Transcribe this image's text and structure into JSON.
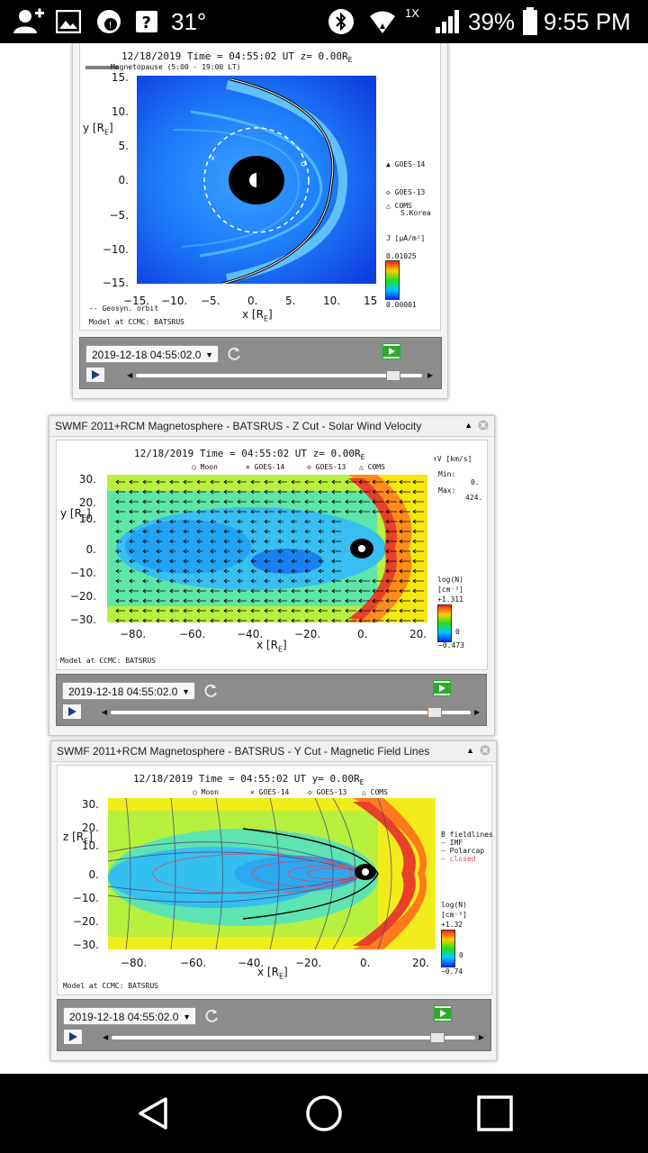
{
  "status_bar": {
    "temperature": "31°",
    "speed_badge": "1X",
    "battery": "39%",
    "time": "9:55 PM"
  },
  "panel1": {
    "figure": {
      "heading": "12/18/2019 Time = 04:55:02 UT z= 0.00R",
      "heading_sub": "E",
      "legend_magnetopause": "Magnetopause (5:00 - 19:00 LT)",
      "ylabel": "y [R",
      "ylabel_sub": "E",
      "ylabel_end": "]",
      "yticks": [
        "15.",
        "10.",
        "5.",
        "0.",
        "−5.",
        "−10.",
        "−15."
      ],
      "xticks": [
        "−15.",
        "−10.",
        "−5.",
        "0.",
        "5.",
        "10.",
        "15"
      ],
      "xlabel": "x [R",
      "xlabel_sub": "E",
      "xlabel_end": "]",
      "geosyn": "Geosyn. orbit",
      "model": "Model at CCMC: BATSRUS",
      "sat1": "GOES-14",
      "sat2": "GOES-13",
      "sat3": "COMS",
      "sat3b": "S.Korea",
      "cbar_label": "J [",
      "cbar_unit": "μA/m²",
      "cbar_end": "]",
      "cbar_max": "0.01025",
      "cbar_min": "0.00001"
    },
    "controls": {
      "date": "2019-12-18 04:55:02.0"
    }
  },
  "panel2": {
    "title": "SWMF 2011+RCM Magnetosphere - BATSRUS - Z Cut - Solar Wind Velocity",
    "figure": {
      "heading": "12/18/2019 Time = 04:55:02 UT z= 0.00R",
      "heading_sub": "E",
      "legend": [
        "Moon",
        "GOES-14",
        "GOES-13",
        "COMS"
      ],
      "v_label": "V [",
      "v_unit": "km/s",
      "v_end": "]",
      "min_label": "Min:",
      "min_val": "0.",
      "max_label": "Max:",
      "max_val": "424.",
      "ylabel": "y [R",
      "ylabel_sub": "E",
      "ylabel_end": "]",
      "yticks": [
        "30.",
        "20.",
        "10.",
        "0.",
        "−10.",
        "−20.",
        "−30."
      ],
      "xticks": [
        "−80.",
        "−60.",
        "−40.",
        "−20.",
        "0.",
        "20."
      ],
      "xlabel": "x [R",
      "xlabel_sub": "E",
      "xlabel_end": "]",
      "cbar_label": "log(N)",
      "cbar_unit": "[cm⁻³]",
      "cbar_max": "+1.311",
      "cbar_zero": "0",
      "cbar_min": "−0.473",
      "model": "Model at CCMC: BATSRUS"
    },
    "controls": {
      "date": "2019-12-18 04:55:02.0"
    }
  },
  "panel3": {
    "title": "SWMF 2011+RCM Magnetosphere - BATSRUS - Y Cut - Magnetic Field Lines",
    "figure": {
      "heading": "12/18/2019 Time = 04:55:02 UT y= 0.00R",
      "heading_sub": "E",
      "legend": [
        "Moon",
        "GOES-14",
        "GOES-13",
        "COMS"
      ],
      "ylabel": "z [R",
      "ylabel_sub": "E",
      "ylabel_end": "]",
      "yticks": [
        "30.",
        "20.",
        "10.",
        "0.",
        "−10.",
        "−20.",
        "−30."
      ],
      "xticks": [
        "−80.",
        "−60.",
        "−40.",
        "−20.",
        "0.",
        "20."
      ],
      "xlabel": "x [R",
      "xlabel_sub": "E",
      "xlabel_end": "]",
      "b_title": "B fieldlines",
      "b_imf": "IMF",
      "b_polarcap": "Polarcap",
      "b_closed": "closed",
      "cbar_label": "log(N)",
      "cbar_unit": "[cm⁻³]",
      "cbar_max": "+1.32",
      "cbar_zero": "0",
      "cbar_min": "−0.74",
      "model": "Model at CCMC: BATSRUS"
    },
    "controls": {
      "date": "2019-12-18 04:55:02.0"
    }
  }
}
